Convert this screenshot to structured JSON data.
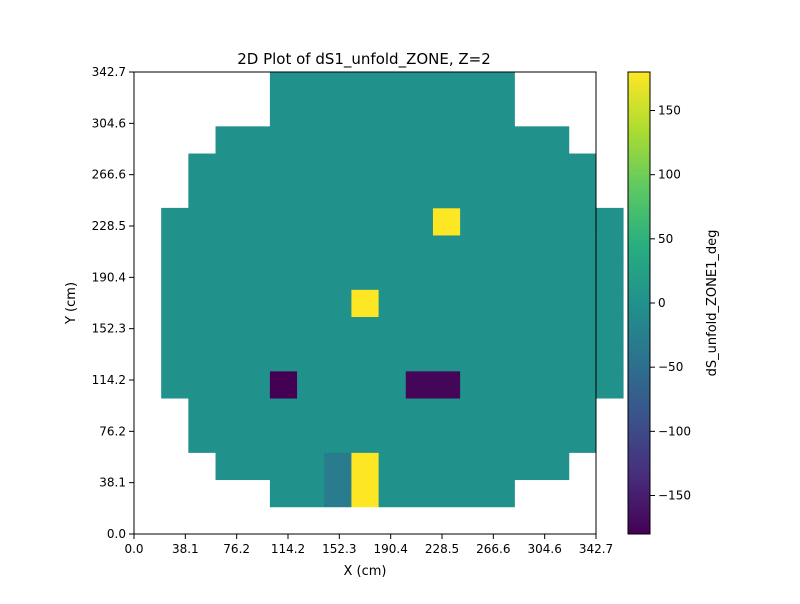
{
  "chart_data": {
    "type": "heatmap",
    "title": "2D Plot of dS1_unfold_ZONE, Z=2",
    "xlabel": "X (cm)",
    "ylabel": "Y (cm)",
    "colorbar_label": "dS_unfold_ZONE1_deg",
    "colormap": "viridis",
    "xlim": [
      0.0,
      342.7
    ],
    "ylim": [
      0.0,
      342.7
    ],
    "xticks": [
      "0.0",
      "38.1",
      "76.2",
      "114.2",
      "152.3",
      "190.4",
      "228.5",
      "266.6",
      "304.6",
      "342.7"
    ],
    "yticks": [
      "0.0",
      "38.1",
      "76.2",
      "114.2",
      "152.3",
      "190.4",
      "228.5",
      "266.6",
      "304.6",
      "342.7"
    ],
    "colorbar_ticks": [
      "150",
      "100",
      "50",
      "0",
      "−50",
      "−100",
      "−150"
    ],
    "colorbar_tick_values": [
      150,
      100,
      50,
      0,
      -50,
      -100,
      -150
    ],
    "clim": [
      -180,
      180
    ],
    "grid": false,
    "cells": [
      {
        "row": 0,
        "cols": [
          5,
          13
        ],
        "values": {
          "7": -30,
          "8": 180
        }
      },
      {
        "row": 1,
        "cols": [
          3,
          15
        ],
        "values": {
          "7": -30,
          "8": 180
        }
      },
      {
        "row": 2,
        "cols": [
          2,
          16
        ],
        "values": {}
      },
      {
        "row": 3,
        "cols": [
          2,
          16
        ],
        "values": {}
      },
      {
        "row": 4,
        "cols": [
          1,
          17
        ],
        "values": {
          "5": -180,
          "10": -175,
          "11": -175
        }
      },
      {
        "row": 5,
        "cols": [
          1,
          17
        ],
        "values": {}
      },
      {
        "row": 6,
        "cols": [
          1,
          17
        ],
        "values": {}
      },
      {
        "row": 7,
        "cols": [
          1,
          17
        ],
        "values": {
          "8": 180
        }
      },
      {
        "row": 8,
        "cols": [
          1,
          17
        ],
        "values": {}
      },
      {
        "row": 9,
        "cols": [
          1,
          17
        ],
        "values": {}
      },
      {
        "row": 10,
        "cols": [
          1,
          17
        ],
        "values": {
          "11": 180
        }
      },
      {
        "row": 11,
        "cols": [
          2,
          16
        ],
        "values": {}
      },
      {
        "row": 12,
        "cols": [
          2,
          16
        ],
        "values": {}
      },
      {
        "row": 13,
        "cols": [
          3,
          15
        ],
        "values": {}
      },
      {
        "row": 14,
        "cols": [
          5,
          13
        ],
        "values": {}
      },
      {
        "row": 15,
        "cols": [
          5,
          13
        ],
        "values": {}
      }
    ],
    "default_value": 0
  }
}
